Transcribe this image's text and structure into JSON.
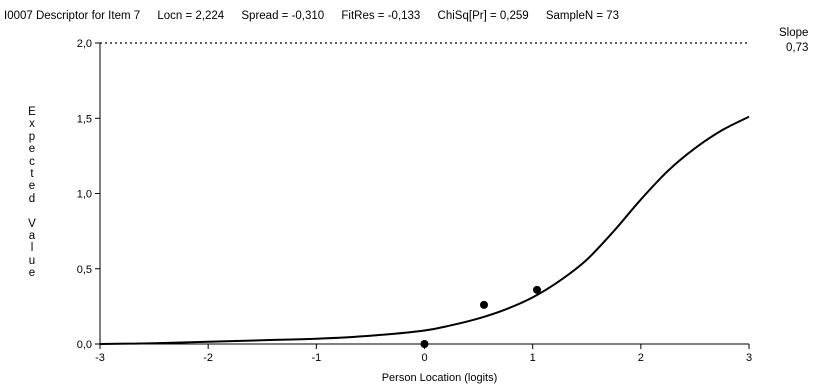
{
  "header": {
    "item": "I0007 Descriptor for Item 7",
    "locn": "Locn = 2,224",
    "spread": "Spread = -0,310",
    "fitres": "FitRes = -0,133",
    "chisq": "ChiSq[Pr] = 0,259",
    "samplen": "SampleN = 73"
  },
  "slope": {
    "label": "Slope",
    "value": "0,73"
  },
  "chart_data": {
    "type": "line",
    "xlabel": "Person Location (logits)",
    "ylabel": "Expected Value",
    "xlim": [
      -3,
      3
    ],
    "ylim": [
      0,
      2
    ],
    "x_ticks": [
      "-3",
      "-2",
      "-1",
      "0",
      "1",
      "2",
      "3"
    ],
    "y_ticks": [
      "0,0",
      "0,5",
      "1,0",
      "1,5",
      "2,0"
    ],
    "max_line_value": 2.0,
    "curve": {
      "x": [
        -3.0,
        -2.5,
        -2.0,
        -1.5,
        -1.0,
        -0.5,
        0.0,
        0.25,
        0.5,
        0.75,
        1.0,
        1.25,
        1.5,
        1.75,
        2.0,
        2.25,
        2.5,
        2.75,
        3.0
      ],
      "y": [
        0.0,
        0.005,
        0.015,
        0.025,
        0.035,
        0.055,
        0.09,
        0.125,
        0.17,
        0.23,
        0.31,
        0.42,
        0.56,
        0.75,
        0.96,
        1.15,
        1.3,
        1.42,
        1.51
      ]
    },
    "points": {
      "x": [
        0.0,
        0.55,
        1.04
      ],
      "y": [
        0.0,
        0.26,
        0.36
      ]
    }
  }
}
